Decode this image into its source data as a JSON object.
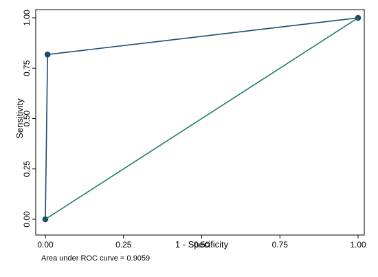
{
  "chart_data": {
    "type": "line",
    "xlabel": "1 - Specificity",
    "ylabel": "Sensitivity",
    "note": "Area under ROC curve = 0.9059",
    "xlim": [
      0,
      1
    ],
    "ylim": [
      0,
      1
    ],
    "xticks": [
      0.0,
      0.25,
      0.5,
      0.75,
      1.0
    ],
    "yticks": [
      0.0,
      0.25,
      0.5,
      0.75,
      1.0
    ],
    "xtick_labels": [
      "0.00",
      "0.25",
      "0.50",
      "0.75",
      "1.00"
    ],
    "ytick_labels": [
      "0.00",
      "0.25",
      "0.50",
      "0.75",
      "1.00"
    ],
    "grid": false,
    "legend": "none",
    "series": [
      {
        "values": [
          {
            "x": 0.0,
            "y": 0.0
          },
          {
            "x": 0.007,
            "y": 0.818
          },
          {
            "x": 1.0,
            "y": 1.0
          }
        ],
        "color": "#1a4a6b",
        "markers": true
      },
      {
        "values": [
          {
            "x": 0.0,
            "y": 0.0
          },
          {
            "x": 1.0,
            "y": 1.0
          }
        ],
        "color": "#1a7a6a",
        "markers": false
      }
    ]
  }
}
